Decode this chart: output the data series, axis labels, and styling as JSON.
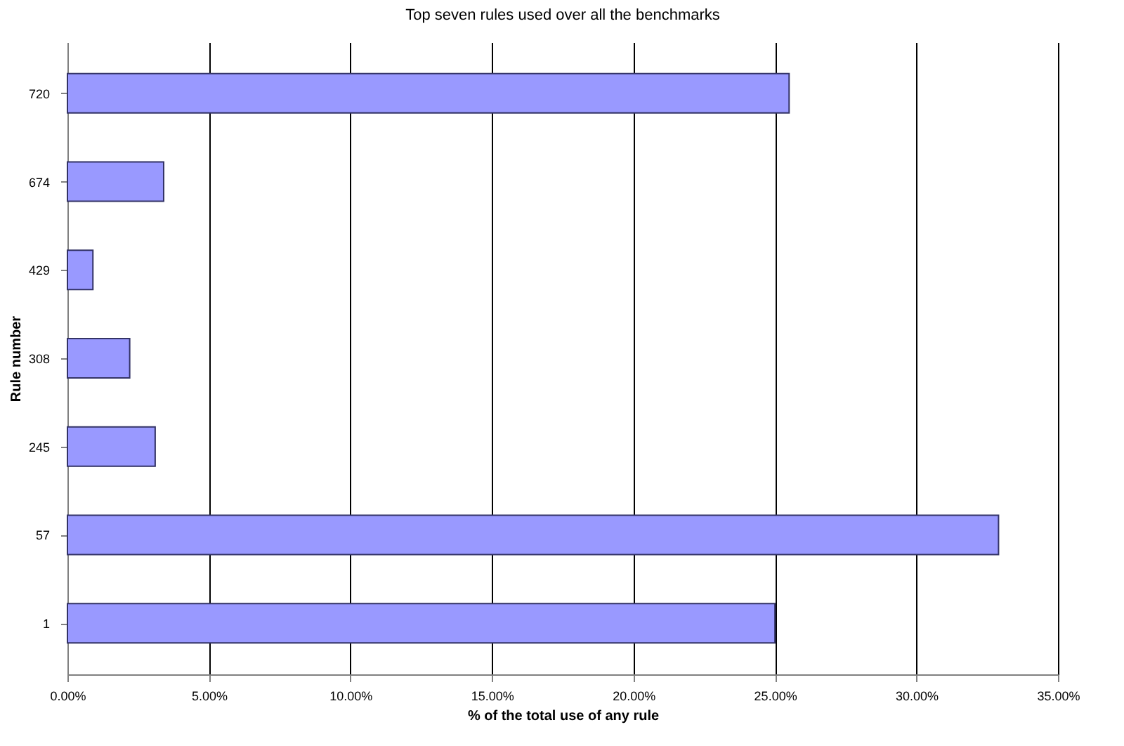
{
  "chart_data": {
    "type": "bar",
    "orientation": "horizontal",
    "title": "Top seven rules used over all the benchmarks",
    "xlabel": "% of the total use of any rule",
    "ylabel": "Rule number",
    "categories": [
      "720",
      "674",
      "429",
      "308",
      "245",
      "57",
      "1"
    ],
    "values": [
      25.5,
      3.4,
      0.9,
      2.2,
      3.1,
      32.9,
      25.0
    ],
    "color": "#9999ff",
    "xlim": [
      0,
      35
    ],
    "xticks": [
      {
        "value": 0,
        "label": "0.00%"
      },
      {
        "value": 5,
        "label": "5.00%"
      },
      {
        "value": 10,
        "label": "10.00%"
      },
      {
        "value": 15,
        "label": "15.00%"
      },
      {
        "value": 20,
        "label": "20.00%"
      },
      {
        "value": 25,
        "label": "25.00%"
      },
      {
        "value": 30,
        "label": "30.00%"
      },
      {
        "value": 35,
        "label": "35.00%"
      }
    ],
    "grid": "x"
  }
}
